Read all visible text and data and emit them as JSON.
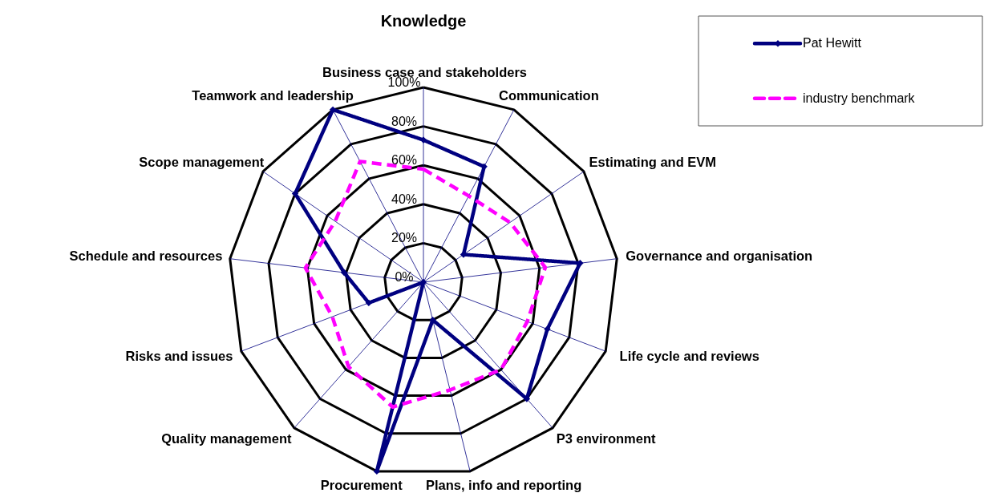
{
  "chart_data": {
    "type": "radar",
    "title": "Knowledge",
    "categories": [
      "Business case and stakeholders",
      "Communication",
      "Estimating and EVM",
      "Governance and organisation",
      "Life cycle and reviews",
      "P3 environment",
      "Plans, info and reporting",
      "Procurement",
      "Quality management",
      "Risks and issues",
      "Schedule and resources",
      "Scope management",
      "Teamwork and leadership"
    ],
    "series": [
      {
        "name": "Pat Hewitt",
        "color": "#000080",
        "marker": "diamond",
        "line_style": "solid",
        "values": [
          73,
          67,
          25,
          81,
          68,
          80,
          20,
          100,
          0,
          30,
          41,
          80,
          100
        ]
      },
      {
        "name": "industry benchmark",
        "color": "#ff00ff",
        "marker": "none",
        "line_style": "dashed",
        "values": [
          58,
          50,
          54,
          63,
          57,
          60,
          57,
          66,
          58,
          50,
          61,
          55,
          70
        ]
      }
    ],
    "ylim": [
      0,
      100
    ],
    "yticks": [
      {
        "value": 0,
        "label": "0%"
      },
      {
        "value": 20,
        "label": "20%"
      },
      {
        "value": 40,
        "label": "40%"
      },
      {
        "value": 60,
        "label": "60%"
      },
      {
        "value": 80,
        "label": "80%"
      },
      {
        "value": 100,
        "label": "100%"
      }
    ],
    "grid": true,
    "legend": "top right"
  }
}
